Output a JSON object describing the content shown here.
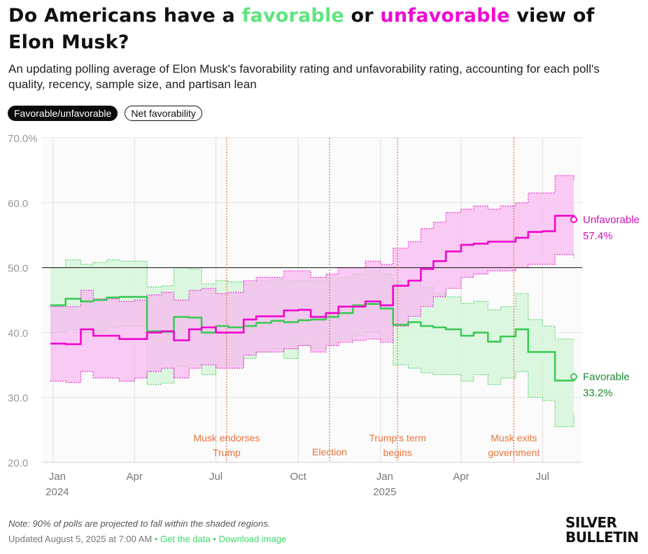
{
  "title": {
    "part1": "Do Americans have a ",
    "favorable_word": "favorable",
    "part2": " or ",
    "unfavorable_word": "unfavorable",
    "part3": " view of Elon Musk?"
  },
  "subtitle": "An updating polling average of Elon Musk's favorability rating and unfavorability rating, accounting for each poll's quality, recency, sample size, and partisan lean",
  "toggles": {
    "active_label": "Favorable/unfavorable",
    "other_label": "Net favorability"
  },
  "colors": {
    "favorable": "#3cc956",
    "favorable_band": "#d2f5d7",
    "favorable_label": "#1f8a33",
    "unfavorable": "#ef06cf",
    "unfavorable_band": "#f8baf0",
    "unfavorable_label": "#d10fb8",
    "event": "#e8743c",
    "grid": "#e3e3e3",
    "axis_text": "#9a9a9a"
  },
  "chart_data": {
    "type": "line",
    "title": "Do Americans have a favorable or unfavorable view of Elon Musk?",
    "ylim": [
      20,
      70
    ],
    "yticks": [
      20,
      30,
      40,
      50,
      60,
      70
    ],
    "ytick_labels": [
      "20.0",
      "30.0",
      "40.0",
      "50.0",
      "60.0",
      "70.0%"
    ],
    "reference_line": 50,
    "xlim": [
      "2023-12-29",
      "2025-08-05"
    ],
    "xticks": [
      {
        "date": "2024-01-01",
        "label": "Jan",
        "year": "2024"
      },
      {
        "date": "2024-04-01",
        "label": "Apr",
        "year": ""
      },
      {
        "date": "2024-07-01",
        "label": "Jul",
        "year": ""
      },
      {
        "date": "2024-10-01",
        "label": "Oct",
        "year": ""
      },
      {
        "date": "2025-01-01",
        "label": "Jan",
        "year": "2025"
      },
      {
        "date": "2025-04-01",
        "label": "Apr",
        "year": ""
      },
      {
        "date": "2025-07-01",
        "label": "Jul",
        "year": ""
      }
    ],
    "events": [
      {
        "date": "2024-07-13",
        "line1": "Musk endorses",
        "line2": "Trump"
      },
      {
        "date": "2024-11-05",
        "line1": "Election",
        "line2": ""
      },
      {
        "date": "2025-01-20",
        "line1": "Trump's term",
        "line2": "begins"
      },
      {
        "date": "2025-05-30",
        "line1": "Musk exits",
        "line2": "government"
      }
    ],
    "series": [
      {
        "name": "Favorable",
        "final_label": "33.2%",
        "x": [
          "2023-12-29",
          "2024-01-15",
          "2024-02-01",
          "2024-02-15",
          "2024-03-01",
          "2024-03-15",
          "2024-04-01",
          "2024-04-15",
          "2024-05-01",
          "2024-05-15",
          "2024-06-01",
          "2024-06-15",
          "2024-07-01",
          "2024-07-15",
          "2024-08-01",
          "2024-08-15",
          "2024-09-01",
          "2024-09-15",
          "2024-10-01",
          "2024-10-15",
          "2024-11-01",
          "2024-11-15",
          "2024-12-01",
          "2024-12-15",
          "2025-01-01",
          "2025-01-15",
          "2025-02-01",
          "2025-02-15",
          "2025-03-01",
          "2025-03-15",
          "2025-04-01",
          "2025-04-15",
          "2025-05-01",
          "2025-05-15",
          "2025-06-01",
          "2025-06-15",
          "2025-07-01",
          "2025-07-15",
          "2025-08-05"
        ],
        "values": [
          44.2,
          45.2,
          44.8,
          45.0,
          45.4,
          45.5,
          45.5,
          40.2,
          40.1,
          42.4,
          42.3,
          40.0,
          41.0,
          40.8,
          41.0,
          41.5,
          41.8,
          41.6,
          41.9,
          42.0,
          42.4,
          43.0,
          44.2,
          44.4,
          43.7,
          41.2,
          41.6,
          41.0,
          40.8,
          40.5,
          39.5,
          40.0,
          38.6,
          39.4,
          40.5,
          37.0,
          37.0,
          32.6,
          33.2
        ],
        "lower": [
          40.0,
          40.5,
          40.0,
          40.2,
          40.8,
          41.0,
          41.0,
          32.0,
          32.2,
          34.8,
          35.0,
          33.5,
          35.0,
          35.0,
          36.0,
          37.0,
          37.5,
          36.0,
          38.0,
          37.5,
          38.0,
          39.0,
          39.5,
          40.0,
          39.0,
          35.0,
          34.5,
          33.8,
          33.5,
          33.5,
          32.5,
          33.5,
          32.0,
          33.0,
          34.0,
          30.0,
          29.5,
          25.5,
          27.5
        ],
        "upper": [
          50.0,
          51.2,
          50.5,
          50.8,
          51.2,
          51.0,
          51.0,
          47.0,
          47.2,
          50.0,
          49.8,
          47.5,
          48.0,
          47.8,
          47.5,
          48.0,
          48.2,
          48.0,
          48.0,
          48.0,
          48.5,
          48.5,
          49.0,
          49.5,
          49.0,
          47.5,
          48.0,
          47.0,
          46.0,
          45.5,
          44.5,
          44.8,
          43.5,
          44.0,
          46.0,
          42.0,
          41.0,
          39.0,
          39.0
        ]
      },
      {
        "name": "Unfavorable",
        "final_label": "57.4%",
        "x": [
          "2023-12-29",
          "2024-01-15",
          "2024-02-01",
          "2024-02-15",
          "2024-03-01",
          "2024-03-15",
          "2024-04-01",
          "2024-04-15",
          "2024-05-01",
          "2024-05-15",
          "2024-06-01",
          "2024-06-15",
          "2024-07-01",
          "2024-07-15",
          "2024-08-01",
          "2024-08-15",
          "2024-09-01",
          "2024-09-15",
          "2024-10-01",
          "2024-10-15",
          "2024-11-01",
          "2024-11-15",
          "2024-12-01",
          "2024-12-15",
          "2025-01-01",
          "2025-01-15",
          "2025-02-01",
          "2025-02-15",
          "2025-03-01",
          "2025-03-15",
          "2025-04-01",
          "2025-04-15",
          "2025-05-01",
          "2025-05-15",
          "2025-06-01",
          "2025-06-15",
          "2025-07-01",
          "2025-07-15",
          "2025-08-05"
        ],
        "values": [
          38.3,
          38.2,
          40.5,
          39.5,
          39.5,
          39.0,
          39.0,
          40.0,
          40.2,
          38.8,
          40.5,
          40.8,
          40.0,
          40.0,
          42.0,
          42.5,
          42.5,
          43.4,
          43.5,
          42.4,
          43.0,
          44.0,
          44.0,
          44.8,
          44.2,
          47.2,
          48.0,
          49.8,
          51.0,
          52.5,
          53.5,
          53.7,
          54.0,
          54.0,
          54.6,
          55.5,
          55.6,
          58.0,
          57.4
        ],
        "lower": [
          32.5,
          32.3,
          34.0,
          33.0,
          33.0,
          32.5,
          33.0,
          34.0,
          34.5,
          33.0,
          34.5,
          35.0,
          34.5,
          34.5,
          36.5,
          37.0,
          37.0,
          37.5,
          38.0,
          37.0,
          38.0,
          38.5,
          38.8,
          39.0,
          38.5,
          41.0,
          42.5,
          44.0,
          45.5,
          46.8,
          48.5,
          49.0,
          49.5,
          49.5,
          50.0,
          50.5,
          50.5,
          52.0,
          51.5
        ],
        "upper": [
          44.0,
          44.0,
          46.5,
          45.2,
          45.2,
          44.8,
          45.0,
          45.8,
          46.2,
          45.0,
          46.5,
          46.8,
          46.0,
          46.2,
          48.0,
          48.5,
          48.5,
          49.5,
          49.5,
          48.5,
          49.0,
          50.0,
          50.0,
          51.0,
          50.5,
          53.0,
          54.0,
          56.0,
          57.0,
          58.5,
          59.0,
          59.5,
          59.0,
          59.5,
          60.0,
          61.5,
          61.5,
          64.2,
          63.5
        ]
      }
    ]
  },
  "footer": {
    "note": "Note: 90% of polls are projected to fall within the shaded regions.",
    "updated": "Updated August 5, 2025 at 7:00 AM",
    "separator": "•",
    "get_data": "Get the data",
    "download": "Download image"
  },
  "logo": {
    "line1": "SILVER",
    "line2": "BULLETIN"
  }
}
